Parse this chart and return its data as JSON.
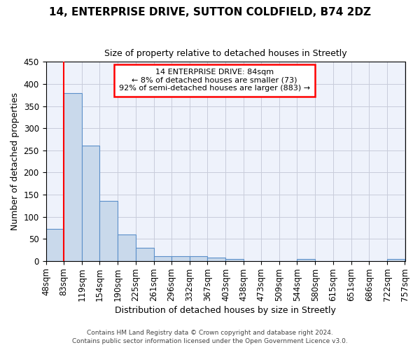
{
  "title1": "14, ENTERPRISE DRIVE, SUTTON COLDFIELD, B74 2DZ",
  "title2": "Size of property relative to detached houses in Streetly",
  "xlabel": "Distribution of detached houses by size in Streetly",
  "ylabel": "Number of detached properties",
  "bin_labels": [
    "48sqm",
    "83sqm",
    "119sqm",
    "154sqm",
    "190sqm",
    "225sqm",
    "261sqm",
    "296sqm",
    "332sqm",
    "367sqm",
    "403sqm",
    "438sqm",
    "473sqm",
    "509sqm",
    "544sqm",
    "580sqm",
    "615sqm",
    "651sqm",
    "686sqm",
    "722sqm",
    "757sqm"
  ],
  "bin_edges": [
    48,
    83,
    119,
    154,
    190,
    225,
    261,
    296,
    332,
    367,
    403,
    438,
    473,
    509,
    544,
    580,
    615,
    651,
    686,
    722,
    757
  ],
  "bar_heights": [
    73,
    380,
    261,
    136,
    59,
    30,
    10,
    10,
    11,
    7,
    5,
    0,
    0,
    0,
    4,
    0,
    0,
    0,
    0,
    4,
    0
  ],
  "bar_color": "#c9d9eb",
  "bar_edge_color": "#5b8fc9",
  "property_line_x": 83,
  "annotation_line1": "14 ENTERPRISE DRIVE: 84sqm",
  "annotation_line2": "← 8% of detached houses are smaller (73)",
  "annotation_line3": "92% of semi-detached houses are larger (883) →",
  "annotation_box_color": "white",
  "annotation_box_edge": "red",
  "red_line_color": "red",
  "ylim": [
    0,
    450
  ],
  "yticks": [
    0,
    50,
    100,
    150,
    200,
    250,
    300,
    350,
    400,
    450
  ],
  "footer1": "Contains HM Land Registry data © Crown copyright and database right 2024.",
  "footer2": "Contains public sector information licensed under the Open Government Licence v3.0.",
  "bg_color": "#ffffff",
  "plot_bg_color": "#eef2fb",
  "grid_color": "#c8ccda"
}
